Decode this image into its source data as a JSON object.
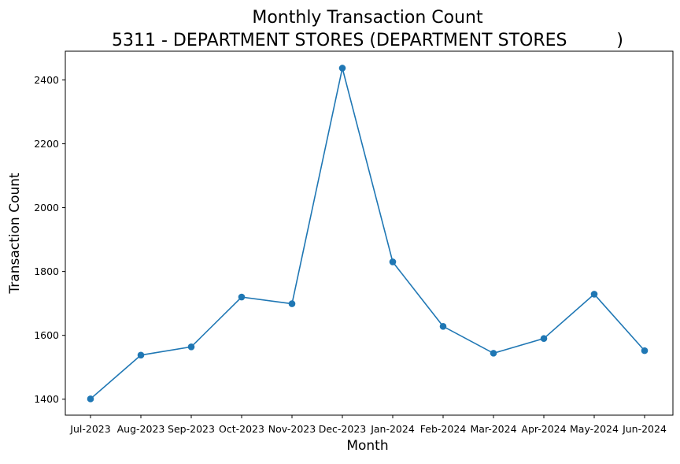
{
  "chart_data": {
    "type": "line",
    "title": "Monthly Transaction Count",
    "subtitle": "5311 - DEPARTMENT STORES (DEPARTMENT STORES         )",
    "xlabel": "Month",
    "ylabel": "Transaction Count",
    "categories": [
      "Jul-2023",
      "Aug-2023",
      "Sep-2023",
      "Oct-2023",
      "Nov-2023",
      "Dec-2023",
      "Jan-2024",
      "Feb-2024",
      "Mar-2024",
      "Apr-2024",
      "May-2024",
      "Jun-2024"
    ],
    "series": [
      {
        "values": [
          1401,
          1538,
          1564,
          1720,
          1699,
          2437,
          1830,
          1628,
          1544,
          1590,
          1729,
          1552
        ],
        "color": "#1f77b4",
        "marker": "circle"
      }
    ],
    "ylim": [
      1350,
      2490
    ],
    "yticks": [
      1400,
      1600,
      1800,
      2000,
      2200,
      2400
    ],
    "grid": false,
    "legend": "none"
  }
}
